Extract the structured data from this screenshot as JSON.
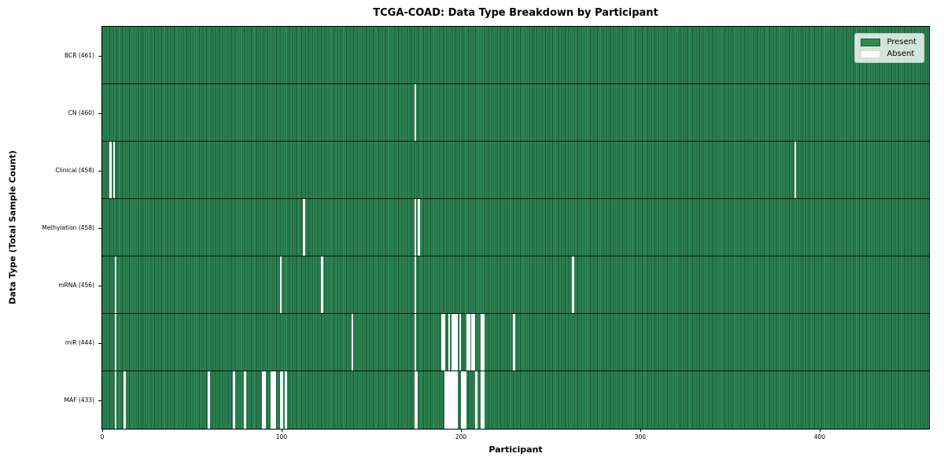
{
  "title": "TCGA-COAD: Data Type Breakdown by Participant",
  "chart_data": {
    "type": "heatmap",
    "title": "TCGA-COAD: Data Type Breakdown by Participant",
    "xlabel": "Participant",
    "ylabel": "Data Type (Total Sample Count)",
    "n_participants": 461,
    "xlim": [
      0,
      461
    ],
    "x_ticks": [
      0,
      100,
      200,
      300,
      400
    ],
    "grid": "off",
    "legend_position": "upper right",
    "colors": {
      "present": "#2e8b57",
      "absent": "#ffffff",
      "separator": "#000000"
    },
    "legend": {
      "entries": [
        {
          "label": "Present",
          "color": "#2e8b57",
          "border": "#1d5c39"
        },
        {
          "label": "Absent",
          "color": "#ffffff",
          "border": "#d9d9d9"
        }
      ]
    },
    "rows": [
      {
        "label": "BCR (461)",
        "data_type": "BCR",
        "total": 461,
        "absent_participants": []
      },
      {
        "label": "CN (460)",
        "data_type": "CN",
        "total": 460,
        "absent_participants": [
          174
        ]
      },
      {
        "label": "Clinical (458)",
        "data_type": "Clinical",
        "total": 458,
        "absent_participants": [
          4,
          6,
          386
        ]
      },
      {
        "label": "Methylation (458)",
        "data_type": "Methylation",
        "total": 458,
        "absent_participants": [
          112,
          174,
          176
        ]
      },
      {
        "label": "mRNA (456)",
        "data_type": "mRNA",
        "total": 456,
        "absent_participants": [
          7,
          99,
          122,
          174,
          262
        ]
      },
      {
        "label": "miR (444)",
        "data_type": "miR",
        "total": 444,
        "absent_participants": [
          7,
          139,
          174,
          189,
          190,
          193,
          195,
          196,
          197,
          199,
          203,
          204,
          206,
          207,
          211,
          212,
          229
        ]
      },
      {
        "label": "MAF (433)",
        "data_type": "MAF",
        "total": 433,
        "absent_participants": [
          7,
          12,
          59,
          73,
          79,
          89,
          90,
          94,
          95,
          96,
          99,
          100,
          102,
          174,
          175,
          191,
          192,
          193,
          194,
          195,
          196,
          197,
          200,
          201,
          202,
          208,
          211,
          212
        ]
      }
    ]
  }
}
